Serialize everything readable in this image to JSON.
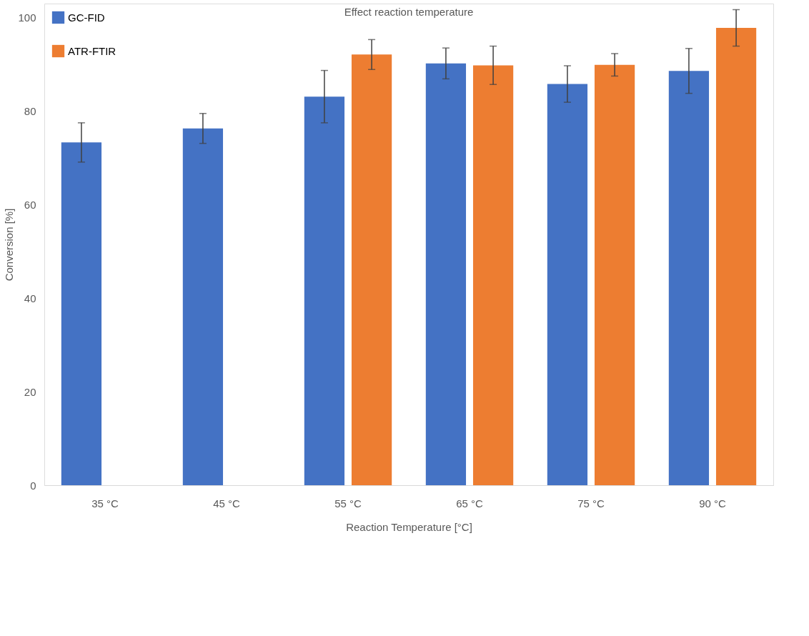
{
  "chart_data": {
    "type": "bar",
    "title": "Effect reaction temperature",
    "xlabel": "Reaction Temperature [°C]",
    "ylabel": "Conversion [%]",
    "categories": [
      "35 °C",
      "45 °C",
      "55 °C",
      "65 °C",
      "75 °C",
      "90 °C"
    ],
    "series": [
      {
        "name": "GC-FID",
        "color": "#4472c4",
        "values": [
          73.3,
          76.3,
          83.1,
          90.2,
          85.8,
          88.6
        ],
        "errors": [
          4.2,
          3.2,
          5.6,
          3.3,
          3.9,
          4.8
        ]
      },
      {
        "name": "ATR-FTIR",
        "color": "#ed7d31",
        "values": [
          0,
          0,
          92.1,
          89.8,
          89.9,
          97.8
        ],
        "errors": [
          null,
          null,
          3.2,
          4.1,
          2.4,
          3.9
        ]
      }
    ],
    "ylim": [
      0,
      103
    ],
    "yticks": [
      0,
      20,
      40,
      60,
      80,
      100
    ],
    "grid": false,
    "legend": "top left"
  }
}
